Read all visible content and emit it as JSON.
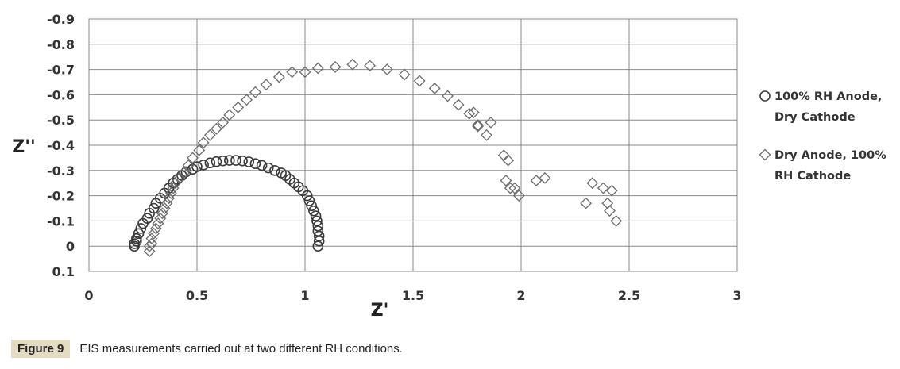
{
  "chart_data": {
    "type": "scatter",
    "xlabel": "Z'",
    "ylabel": "Z''",
    "xlim": [
      0,
      3
    ],
    "ylim": [
      -0.9,
      0.1
    ],
    "y_reversed": true,
    "x_ticks": [
      "0",
      "0.5",
      "1",
      "1.5",
      "2",
      "2.5",
      "3"
    ],
    "y_ticks": [
      "-0.9",
      "-0.8",
      "-0.7",
      "-0.6",
      "-0.5",
      "-0.4",
      "-0.3",
      "-0.2",
      "-0.1",
      "0",
      "0.1"
    ],
    "grid": true,
    "legend_position": "right",
    "series": [
      {
        "name": "100% RH Anode, Dry Cathode",
        "marker": "circle",
        "points": [
          [
            0.21,
            0.0
          ],
          [
            0.21,
            -0.01
          ],
          [
            0.22,
            -0.02
          ],
          [
            0.22,
            -0.03
          ],
          [
            0.23,
            -0.05
          ],
          [
            0.24,
            -0.07
          ],
          [
            0.25,
            -0.09
          ],
          [
            0.27,
            -0.11
          ],
          [
            0.28,
            -0.13
          ],
          [
            0.3,
            -0.15
          ],
          [
            0.31,
            -0.17
          ],
          [
            0.33,
            -0.19
          ],
          [
            0.35,
            -0.21
          ],
          [
            0.37,
            -0.23
          ],
          [
            0.39,
            -0.25
          ],
          [
            0.41,
            -0.265
          ],
          [
            0.43,
            -0.28
          ],
          [
            0.45,
            -0.295
          ],
          [
            0.48,
            -0.305
          ],
          [
            0.5,
            -0.315
          ],
          [
            0.53,
            -0.322
          ],
          [
            0.56,
            -0.33
          ],
          [
            0.59,
            -0.335
          ],
          [
            0.62,
            -0.338
          ],
          [
            0.65,
            -0.34
          ],
          [
            0.68,
            -0.34
          ],
          [
            0.71,
            -0.338
          ],
          [
            0.74,
            -0.334
          ],
          [
            0.77,
            -0.327
          ],
          [
            0.8,
            -0.32
          ],
          [
            0.83,
            -0.31
          ],
          [
            0.86,
            -0.3
          ],
          [
            0.89,
            -0.29
          ],
          [
            0.91,
            -0.28
          ],
          [
            0.93,
            -0.265
          ],
          [
            0.95,
            -0.25
          ],
          [
            0.97,
            -0.235
          ],
          [
            0.99,
            -0.22
          ],
          [
            1.01,
            -0.2
          ],
          [
            1.02,
            -0.18
          ],
          [
            1.03,
            -0.16
          ],
          [
            1.04,
            -0.14
          ],
          [
            1.05,
            -0.12
          ],
          [
            1.055,
            -0.1
          ],
          [
            1.06,
            -0.08
          ],
          [
            1.06,
            -0.06
          ],
          [
            1.065,
            -0.04
          ],
          [
            1.065,
            -0.02
          ],
          [
            1.06,
            0.0
          ]
        ]
      },
      {
        "name": "Dry Anode, 100% RH Cathode",
        "marker": "diamond",
        "points": [
          [
            0.28,
            0.02
          ],
          [
            0.28,
            0.0
          ],
          [
            0.29,
            -0.01
          ],
          [
            0.29,
            -0.03
          ],
          [
            0.3,
            -0.05
          ],
          [
            0.31,
            -0.07
          ],
          [
            0.32,
            -0.09
          ],
          [
            0.33,
            -0.11
          ],
          [
            0.34,
            -0.13
          ],
          [
            0.35,
            -0.15
          ],
          [
            0.36,
            -0.17
          ],
          [
            0.37,
            -0.19
          ],
          [
            0.38,
            -0.21
          ],
          [
            0.39,
            -0.23
          ],
          [
            0.4,
            -0.25
          ],
          [
            0.42,
            -0.27
          ],
          [
            0.44,
            -0.29
          ],
          [
            0.46,
            -0.32
          ],
          [
            0.48,
            -0.35
          ],
          [
            0.51,
            -0.38
          ],
          [
            0.53,
            -0.41
          ],
          [
            0.56,
            -0.44
          ],
          [
            0.59,
            -0.465
          ],
          [
            0.62,
            -0.49
          ],
          [
            0.65,
            -0.52
          ],
          [
            0.69,
            -0.55
          ],
          [
            0.73,
            -0.58
          ],
          [
            0.77,
            -0.61
          ],
          [
            0.82,
            -0.64
          ],
          [
            0.88,
            -0.67
          ],
          [
            0.94,
            -0.69
          ],
          [
            1.0,
            -0.69
          ],
          [
            1.06,
            -0.705
          ],
          [
            1.14,
            -0.71
          ],
          [
            1.22,
            -0.72
          ],
          [
            1.3,
            -0.715
          ],
          [
            1.38,
            -0.7
          ],
          [
            1.46,
            -0.68
          ],
          [
            1.53,
            -0.655
          ],
          [
            1.6,
            -0.625
          ],
          [
            1.66,
            -0.595
          ],
          [
            1.71,
            -0.56
          ],
          [
            1.76,
            -0.525
          ],
          [
            1.8,
            -0.48
          ],
          [
            1.84,
            -0.44
          ],
          [
            1.78,
            -0.53
          ],
          [
            1.86,
            -0.49
          ],
          [
            1.8,
            -0.475
          ],
          [
            1.92,
            -0.36
          ],
          [
            1.94,
            -0.34
          ],
          [
            1.93,
            -0.26
          ],
          [
            1.95,
            -0.23
          ],
          [
            1.97,
            -0.23
          ],
          [
            1.99,
            -0.2
          ],
          [
            2.07,
            -0.26
          ],
          [
            2.11,
            -0.27
          ],
          [
            2.3,
            -0.17
          ],
          [
            2.33,
            -0.25
          ],
          [
            2.38,
            -0.23
          ],
          [
            2.42,
            -0.22
          ],
          [
            2.4,
            -0.17
          ],
          [
            2.41,
            -0.14
          ],
          [
            2.44,
            -0.1
          ]
        ]
      }
    ]
  },
  "caption": {
    "label": "Figure 9",
    "text": "EIS measurements carried out at two different RH conditions."
  }
}
